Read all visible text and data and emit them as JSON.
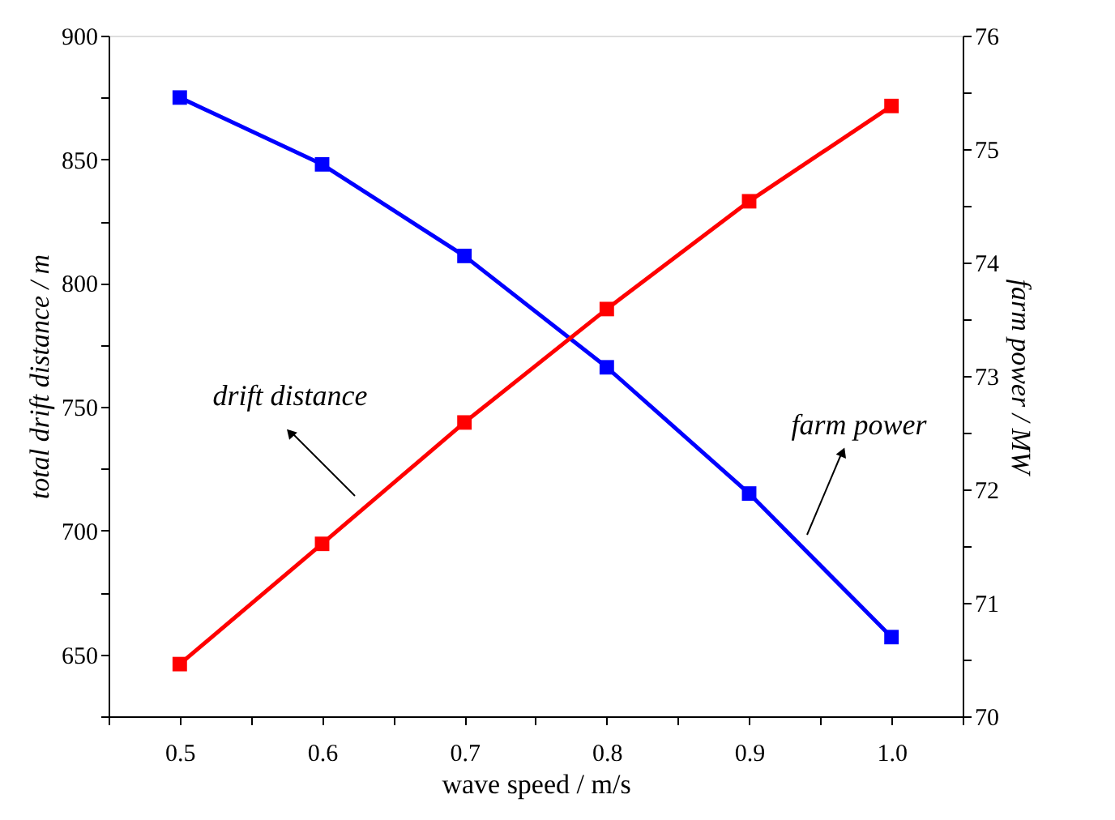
{
  "chart_data": {
    "type": "line",
    "xlabel": "wave speed / m/s",
    "ylabel": "total drift distance / m",
    "y2label": "farm power / MW",
    "x": [
      0.5,
      0.6,
      0.7,
      0.8,
      0.9,
      1.0
    ],
    "series": [
      {
        "color": "#0000ff",
        "values": [
          875,
          848,
          811,
          766,
          715,
          657
        ]
      },
      {
        "color": "#ff0000",
        "axis": "y2",
        "values": [
          70.46,
          71.52,
          72.59,
          73.59,
          74.54,
          75.38
        ]
      }
    ],
    "xlim": [
      0.45,
      1.05
    ],
    "xticks": [
      {
        "value": 0.45,
        "label": null
      },
      0.5,
      {
        "value": 0.55,
        "label": null
      },
      0.6,
      {
        "value": 0.65,
        "label": null
      },
      0.7,
      {
        "value": 0.75,
        "label": null
      },
      0.8,
      {
        "value": 0.85,
        "label": null
      },
      0.9,
      {
        "value": 0.95,
        "label": null
      },
      {
        "value": 1.0,
        "label": "1.0"
      },
      {
        "value": 1.05,
        "label": null
      }
    ],
    "ylim": [
      625,
      900
    ],
    "yticks": [
      {
        "value": 625,
        "label": null
      },
      650,
      {
        "value": 675,
        "label": null
      },
      700,
      {
        "value": 725,
        "label": null
      },
      750,
      {
        "value": 775,
        "label": null
      },
      800,
      {
        "value": 825,
        "label": null
      },
      850,
      {
        "value": 875,
        "label": null
      },
      900
    ],
    "y2lim": [
      70,
      76
    ],
    "y2ticks": [
      70,
      {
        "value": 70.5,
        "label": null
      },
      71,
      {
        "value": 71.5,
        "label": null
      },
      72,
      {
        "value": 72.5,
        "label": null
      },
      73,
      {
        "value": 73.5,
        "label": null
      },
      74,
      {
        "value": 74.5,
        "label": null
      },
      75,
      {
        "value": 75.5,
        "label": null
      },
      76
    ],
    "annotations": [
      "drift distance",
      "farm power"
    ],
    "marker": "square",
    "line_style": "solid",
    "grid": false
  }
}
